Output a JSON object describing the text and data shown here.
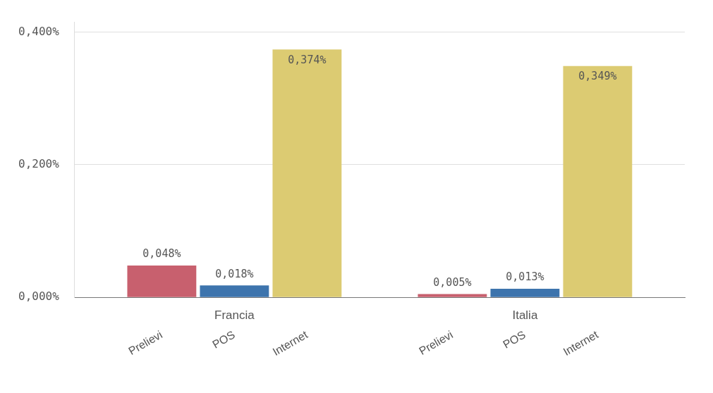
{
  "chart_data": {
    "type": "bar",
    "categories": [
      "Prelievi",
      "POS",
      "Internet",
      "Prelievi",
      "POS",
      "Internet"
    ],
    "values": [
      0.048,
      0.018,
      0.374,
      0.005,
      0.013,
      0.349
    ],
    "colors": [
      "#c8606e",
      "#3d74ad",
      "#dccb72",
      "#c8606e",
      "#3d74ad",
      "#dccb72"
    ],
    "value_labels": [
      "0,048%",
      "0,018%",
      "0,374%",
      "0,005%",
      "0,013%",
      "0,349%"
    ],
    "annotations": [
      "Francia",
      "Italia"
    ],
    "ylim": [
      0,
      0.415
    ],
    "yticks": [
      {
        "value": 0,
        "label": "0,000%"
      },
      {
        "value": 0.2,
        "label": "0,200%"
      },
      {
        "value": 0.4,
        "label": "0,400%"
      }
    ],
    "grid": "y",
    "legend": false
  }
}
